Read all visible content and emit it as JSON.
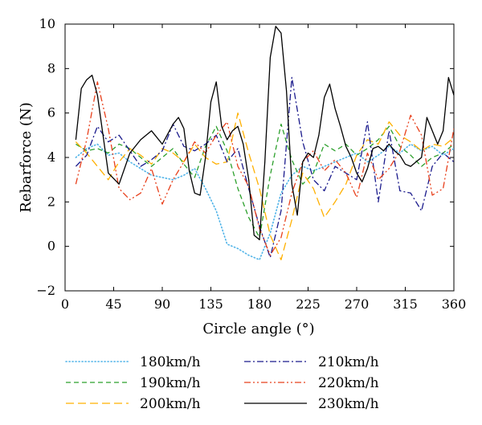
{
  "chart_data": {
    "type": "line",
    "title": "",
    "xlabel": "Circle angle (°)",
    "ylabel": "Rebarforce (N)",
    "xlim": [
      0,
      360
    ],
    "ylim": [
      -2,
      10
    ],
    "xticks": [
      0,
      45,
      90,
      135,
      180,
      225,
      270,
      315,
      360
    ],
    "yticks": [
      -2,
      0,
      2,
      4,
      6,
      8,
      10
    ],
    "grid": false,
    "legend_position": "bottom",
    "series": [
      {
        "name": "180km/h",
        "color": "#4fb3e8",
        "dash": "dotted",
        "x": [
          10,
          20,
          30,
          40,
          50,
          60,
          70,
          80,
          90,
          100,
          110,
          120,
          130,
          140,
          150,
          160,
          170,
          180,
          190,
          200,
          210,
          220,
          230,
          240,
          250,
          260,
          270,
          280,
          290,
          300,
          310,
          320,
          330,
          340,
          350,
          360
        ],
        "y": [
          4.0,
          4.4,
          4.6,
          4.1,
          4.2,
          3.8,
          3.5,
          3.2,
          3.1,
          3.0,
          3.2,
          3.5,
          2.6,
          1.6,
          0.1,
          -0.1,
          -0.4,
          -0.6,
          0.6,
          2.4,
          3.2,
          3.6,
          3.4,
          3.6,
          3.8,
          4.0,
          4.2,
          3.8,
          4.1,
          4.5,
          4.2,
          4.6,
          4.3,
          4.5,
          4.1,
          4.4
        ]
      },
      {
        "name": "190km/h",
        "color": "#2ca02c",
        "dash": "dashed",
        "x": [
          10,
          20,
          30,
          40,
          50,
          60,
          70,
          80,
          90,
          100,
          110,
          120,
          130,
          140,
          150,
          160,
          170,
          180,
          190,
          200,
          210,
          220,
          230,
          240,
          250,
          260,
          270,
          280,
          290,
          300,
          310,
          320,
          330,
          340,
          350,
          360
        ],
        "y": [
          4.6,
          4.3,
          4.4,
          4.2,
          4.6,
          4.4,
          4.0,
          3.6,
          4.0,
          4.4,
          3.7,
          3.1,
          4.5,
          5.4,
          4.3,
          2.6,
          1.3,
          0.4,
          3.2,
          5.5,
          3.9,
          2.8,
          3.3,
          4.6,
          4.3,
          4.6,
          4.1,
          4.4,
          4.8,
          5.4,
          4.5,
          4.1,
          3.6,
          4.0,
          4.2,
          4.6
        ]
      },
      {
        "name": "200km/h",
        "color": "#ffb000",
        "dash": "longdash",
        "x": [
          10,
          20,
          30,
          40,
          50,
          60,
          70,
          80,
          90,
          100,
          110,
          120,
          130,
          140,
          150,
          160,
          170,
          180,
          190,
          200,
          210,
          220,
          230,
          240,
          250,
          260,
          270,
          280,
          290,
          300,
          310,
          320,
          330,
          340,
          350,
          360
        ],
        "y": [
          4.7,
          4.2,
          3.6,
          3.0,
          3.8,
          4.4,
          4.1,
          3.7,
          4.4,
          4.2,
          3.8,
          4.6,
          4.0,
          3.7,
          3.8,
          6.0,
          4.2,
          2.6,
          0.5,
          -0.6,
          1.2,
          3.3,
          2.6,
          1.3,
          2.0,
          2.8,
          4.1,
          4.8,
          4.6,
          5.6,
          5.0,
          4.7,
          4.3,
          4.6,
          4.5,
          4.9
        ]
      },
      {
        "name": "210km/h",
        "color": "#1a1a8c",
        "dash": "dashdot",
        "x": [
          10,
          20,
          30,
          40,
          50,
          60,
          70,
          80,
          90,
          100,
          110,
          120,
          130,
          140,
          150,
          160,
          170,
          180,
          190,
          200,
          210,
          220,
          230,
          240,
          250,
          260,
          270,
          280,
          290,
          300,
          310,
          320,
          330,
          340,
          350,
          360
        ],
        "y": [
          3.6,
          4.1,
          5.4,
          4.7,
          5.0,
          4.3,
          3.6,
          3.9,
          4.3,
          5.5,
          4.5,
          4.3,
          4.6,
          5.0,
          3.8,
          4.4,
          2.6,
          0.9,
          -0.5,
          1.6,
          7.6,
          4.7,
          3.0,
          2.5,
          3.6,
          3.3,
          3.0,
          5.6,
          2.0,
          5.2,
          2.5,
          2.4,
          1.6,
          3.6,
          4.2,
          3.8
        ]
      },
      {
        "name": "220km/h",
        "color": "#e8401c",
        "dash": "dashdotdot",
        "x": [
          10,
          20,
          30,
          40,
          50,
          60,
          70,
          80,
          90,
          100,
          110,
          120,
          130,
          140,
          150,
          160,
          170,
          180,
          190,
          200,
          210,
          220,
          230,
          240,
          250,
          260,
          270,
          280,
          290,
          300,
          310,
          320,
          330,
          340,
          350,
          360
        ],
        "y": [
          2.8,
          4.8,
          7.4,
          5.3,
          2.6,
          2.1,
          2.4,
          3.5,
          1.9,
          3.0,
          3.8,
          4.7,
          4.2,
          5.0,
          5.6,
          3.6,
          2.7,
          0.8,
          -0.4,
          0.4,
          2.4,
          3.8,
          4.3,
          3.4,
          3.9,
          3.3,
          2.2,
          4.2,
          3.0,
          3.5,
          4.3,
          5.9,
          5.0,
          2.3,
          2.6,
          5.3
        ]
      },
      {
        "name": "230km/h",
        "color": "#000000",
        "dash": "solid",
        "x": [
          10,
          15,
          20,
          25,
          30,
          40,
          50,
          60,
          70,
          80,
          90,
          100,
          105,
          110,
          115,
          120,
          125,
          130,
          135,
          140,
          145,
          150,
          155,
          160,
          165,
          170,
          175,
          180,
          185,
          190,
          195,
          200,
          205,
          210,
          215,
          220,
          225,
          230,
          235,
          240,
          245,
          250,
          255,
          260,
          265,
          270,
          275,
          280,
          285,
          290,
          295,
          300,
          305,
          310,
          315,
          320,
          325,
          330,
          335,
          340,
          345,
          350,
          355,
          360
        ],
        "y": [
          4.8,
          7.1,
          7.5,
          7.7,
          6.8,
          3.3,
          2.8,
          4.2,
          4.8,
          5.2,
          4.6,
          5.5,
          5.8,
          5.3,
          3.4,
          2.4,
          2.3,
          4.0,
          6.5,
          7.4,
          5.4,
          4.8,
          5.2,
          5.4,
          4.6,
          3.0,
          0.5,
          0.3,
          3.8,
          8.5,
          9.9,
          9.6,
          7.0,
          2.8,
          1.4,
          3.8,
          4.2,
          4.0,
          5.0,
          6.7,
          7.3,
          6.2,
          5.4,
          4.5,
          4.0,
          3.3,
          2.9,
          3.5,
          4.4,
          4.5,
          4.3,
          4.6,
          4.3,
          4.1,
          3.7,
          3.6,
          3.8,
          4.0,
          5.8,
          5.2,
          4.6,
          5.2,
          7.6,
          6.8
        ]
      }
    ]
  }
}
